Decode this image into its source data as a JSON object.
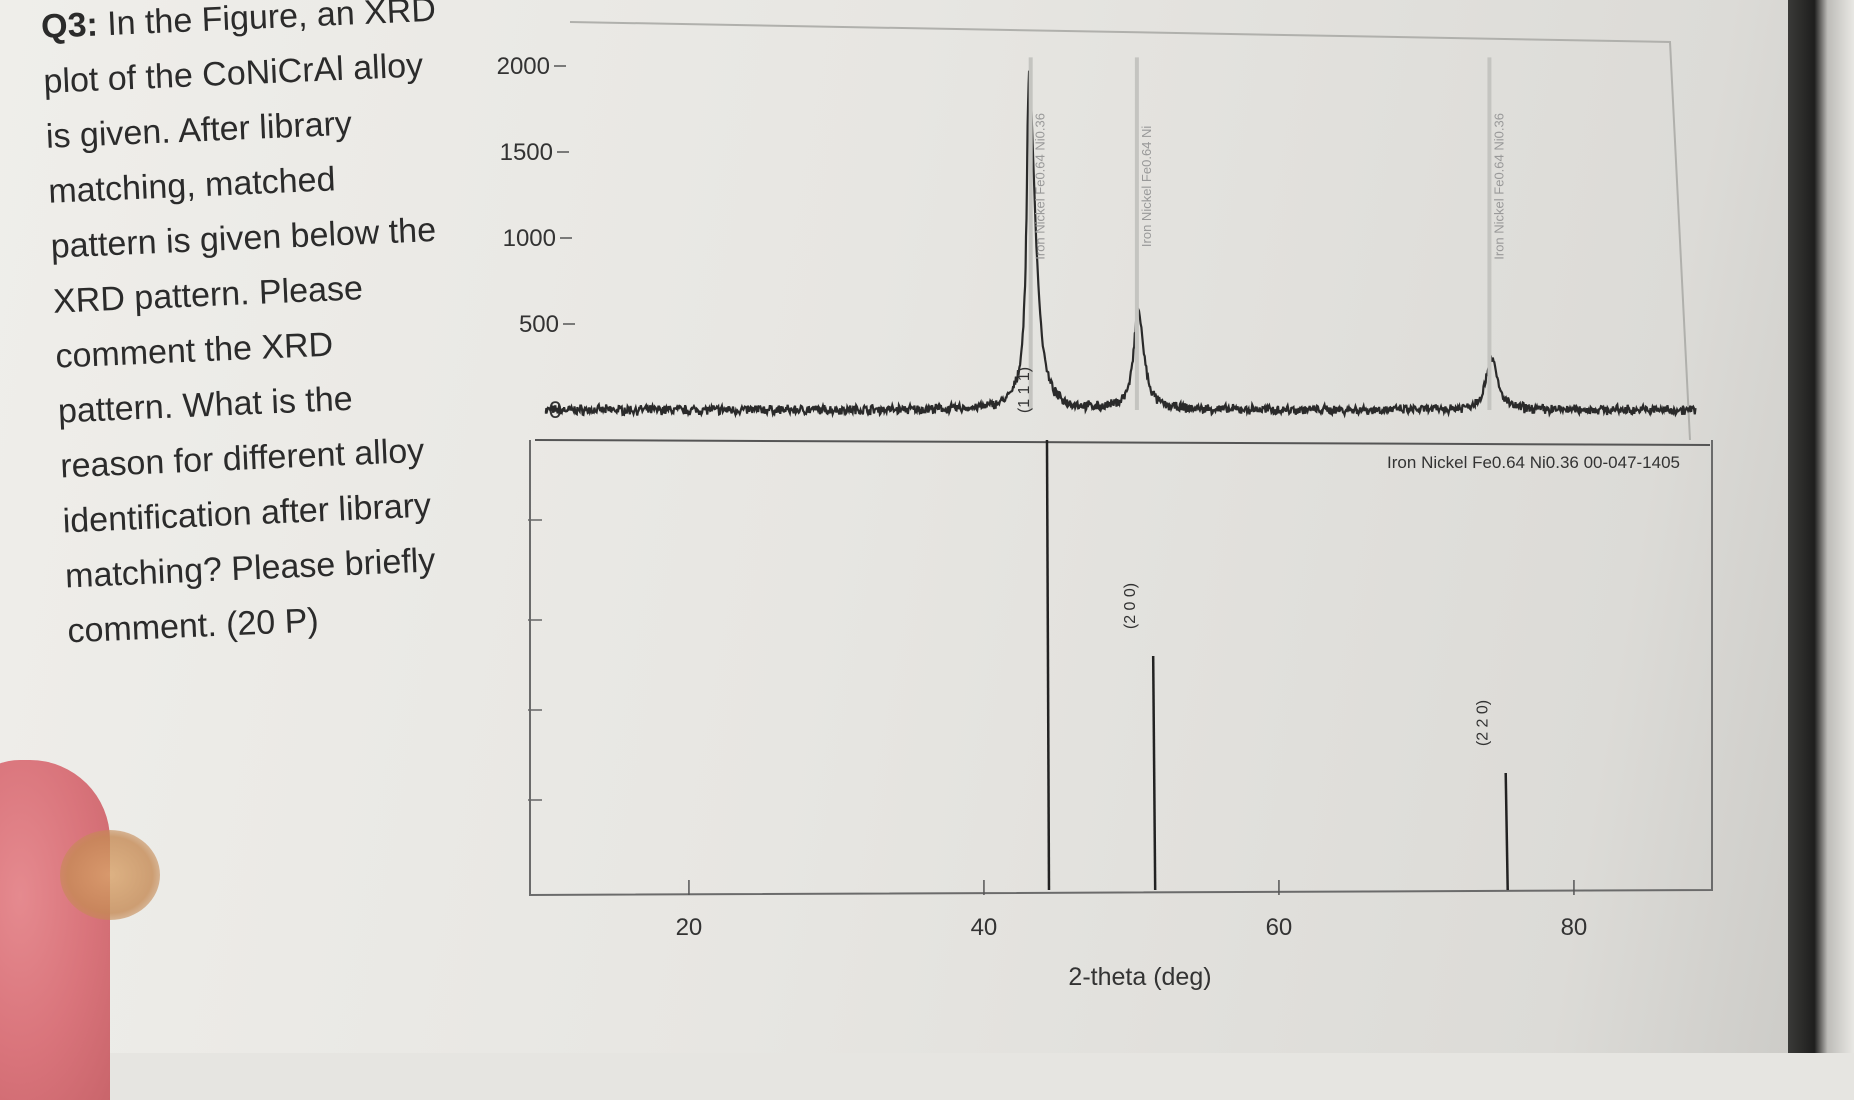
{
  "question": {
    "label": "Q3:",
    "lines": [
      " In the Figure, an XRD",
      "plot of the CoNiCrAl alloy",
      "is given. After library",
      "matching, matched",
      "pattern is given below the",
      "XRD pattern. Please",
      "comment the XRD",
      "pattern. What is the",
      "reason for different alloy",
      "identification after library",
      "matching? Please briefly",
      "comment. (20 P)"
    ]
  },
  "chart_data": [
    {
      "type": "line",
      "title": "",
      "xlabel": "2-theta (deg)",
      "ylabel": "",
      "xlim": [
        10,
        90
      ],
      "ylim": [
        -100,
        2100
      ],
      "xticks": [
        20,
        40,
        60,
        80
      ],
      "yticks": [
        0,
        500,
        1000,
        1500,
        2000
      ],
      "peaks": [
        {
          "x": 43.6,
          "y": 1950
        },
        {
          "x": 50.8,
          "y": 580
        },
        {
          "x": 74.7,
          "y": 310
        }
      ],
      "baseline": 0,
      "reference_labels": [
        {
          "x": 43.6,
          "text": "Iron Nickel  Fe0.64 Ni0.36"
        },
        {
          "x": 50.8,
          "text": "Iron Nickel  Fe0.64 Ni"
        },
        {
          "x": 74.7,
          "text": "Iron Nickel  Fe0.64 Ni0.36"
        }
      ]
    },
    {
      "type": "bar",
      "title": "Iron Nickel  Fe0.64 Ni0.36  00-047-1405",
      "xlabel": "2-theta (deg)",
      "ylim": [
        0,
        100
      ],
      "sticks": [
        {
          "x": 43.6,
          "intensity": 100,
          "hkl": "(1 1 1)"
        },
        {
          "x": 50.8,
          "intensity": 52,
          "hkl": "(2 0 0)"
        },
        {
          "x": 74.7,
          "intensity": 26,
          "hkl": "(2 2 0)"
        }
      ]
    }
  ]
}
